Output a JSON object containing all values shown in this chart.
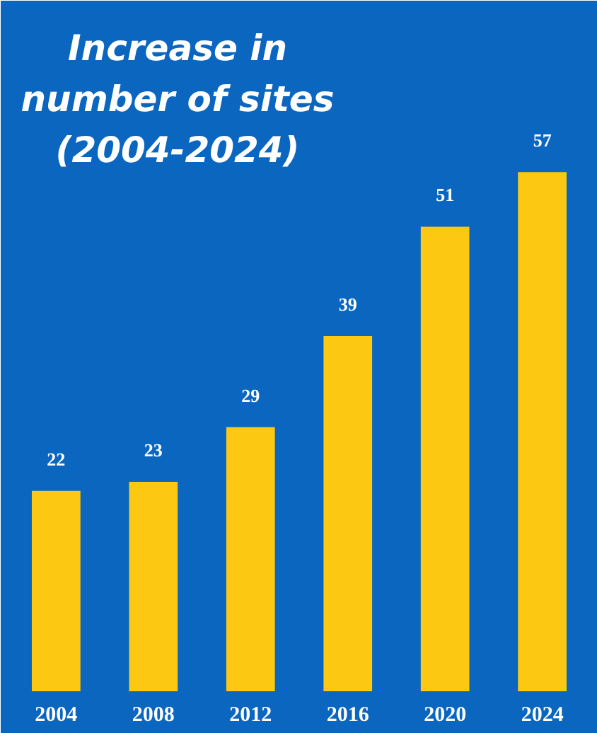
{
  "chart_data": {
    "type": "bar",
    "title": "Increase in number of sites (2004-2024)",
    "categories": [
      "2004",
      "2008",
      "2012",
      "2016",
      "2020",
      "2024"
    ],
    "values": [
      22,
      23,
      29,
      39,
      51,
      57
    ],
    "color": "#fcc812",
    "data_labels": true,
    "grid": false
  }
}
